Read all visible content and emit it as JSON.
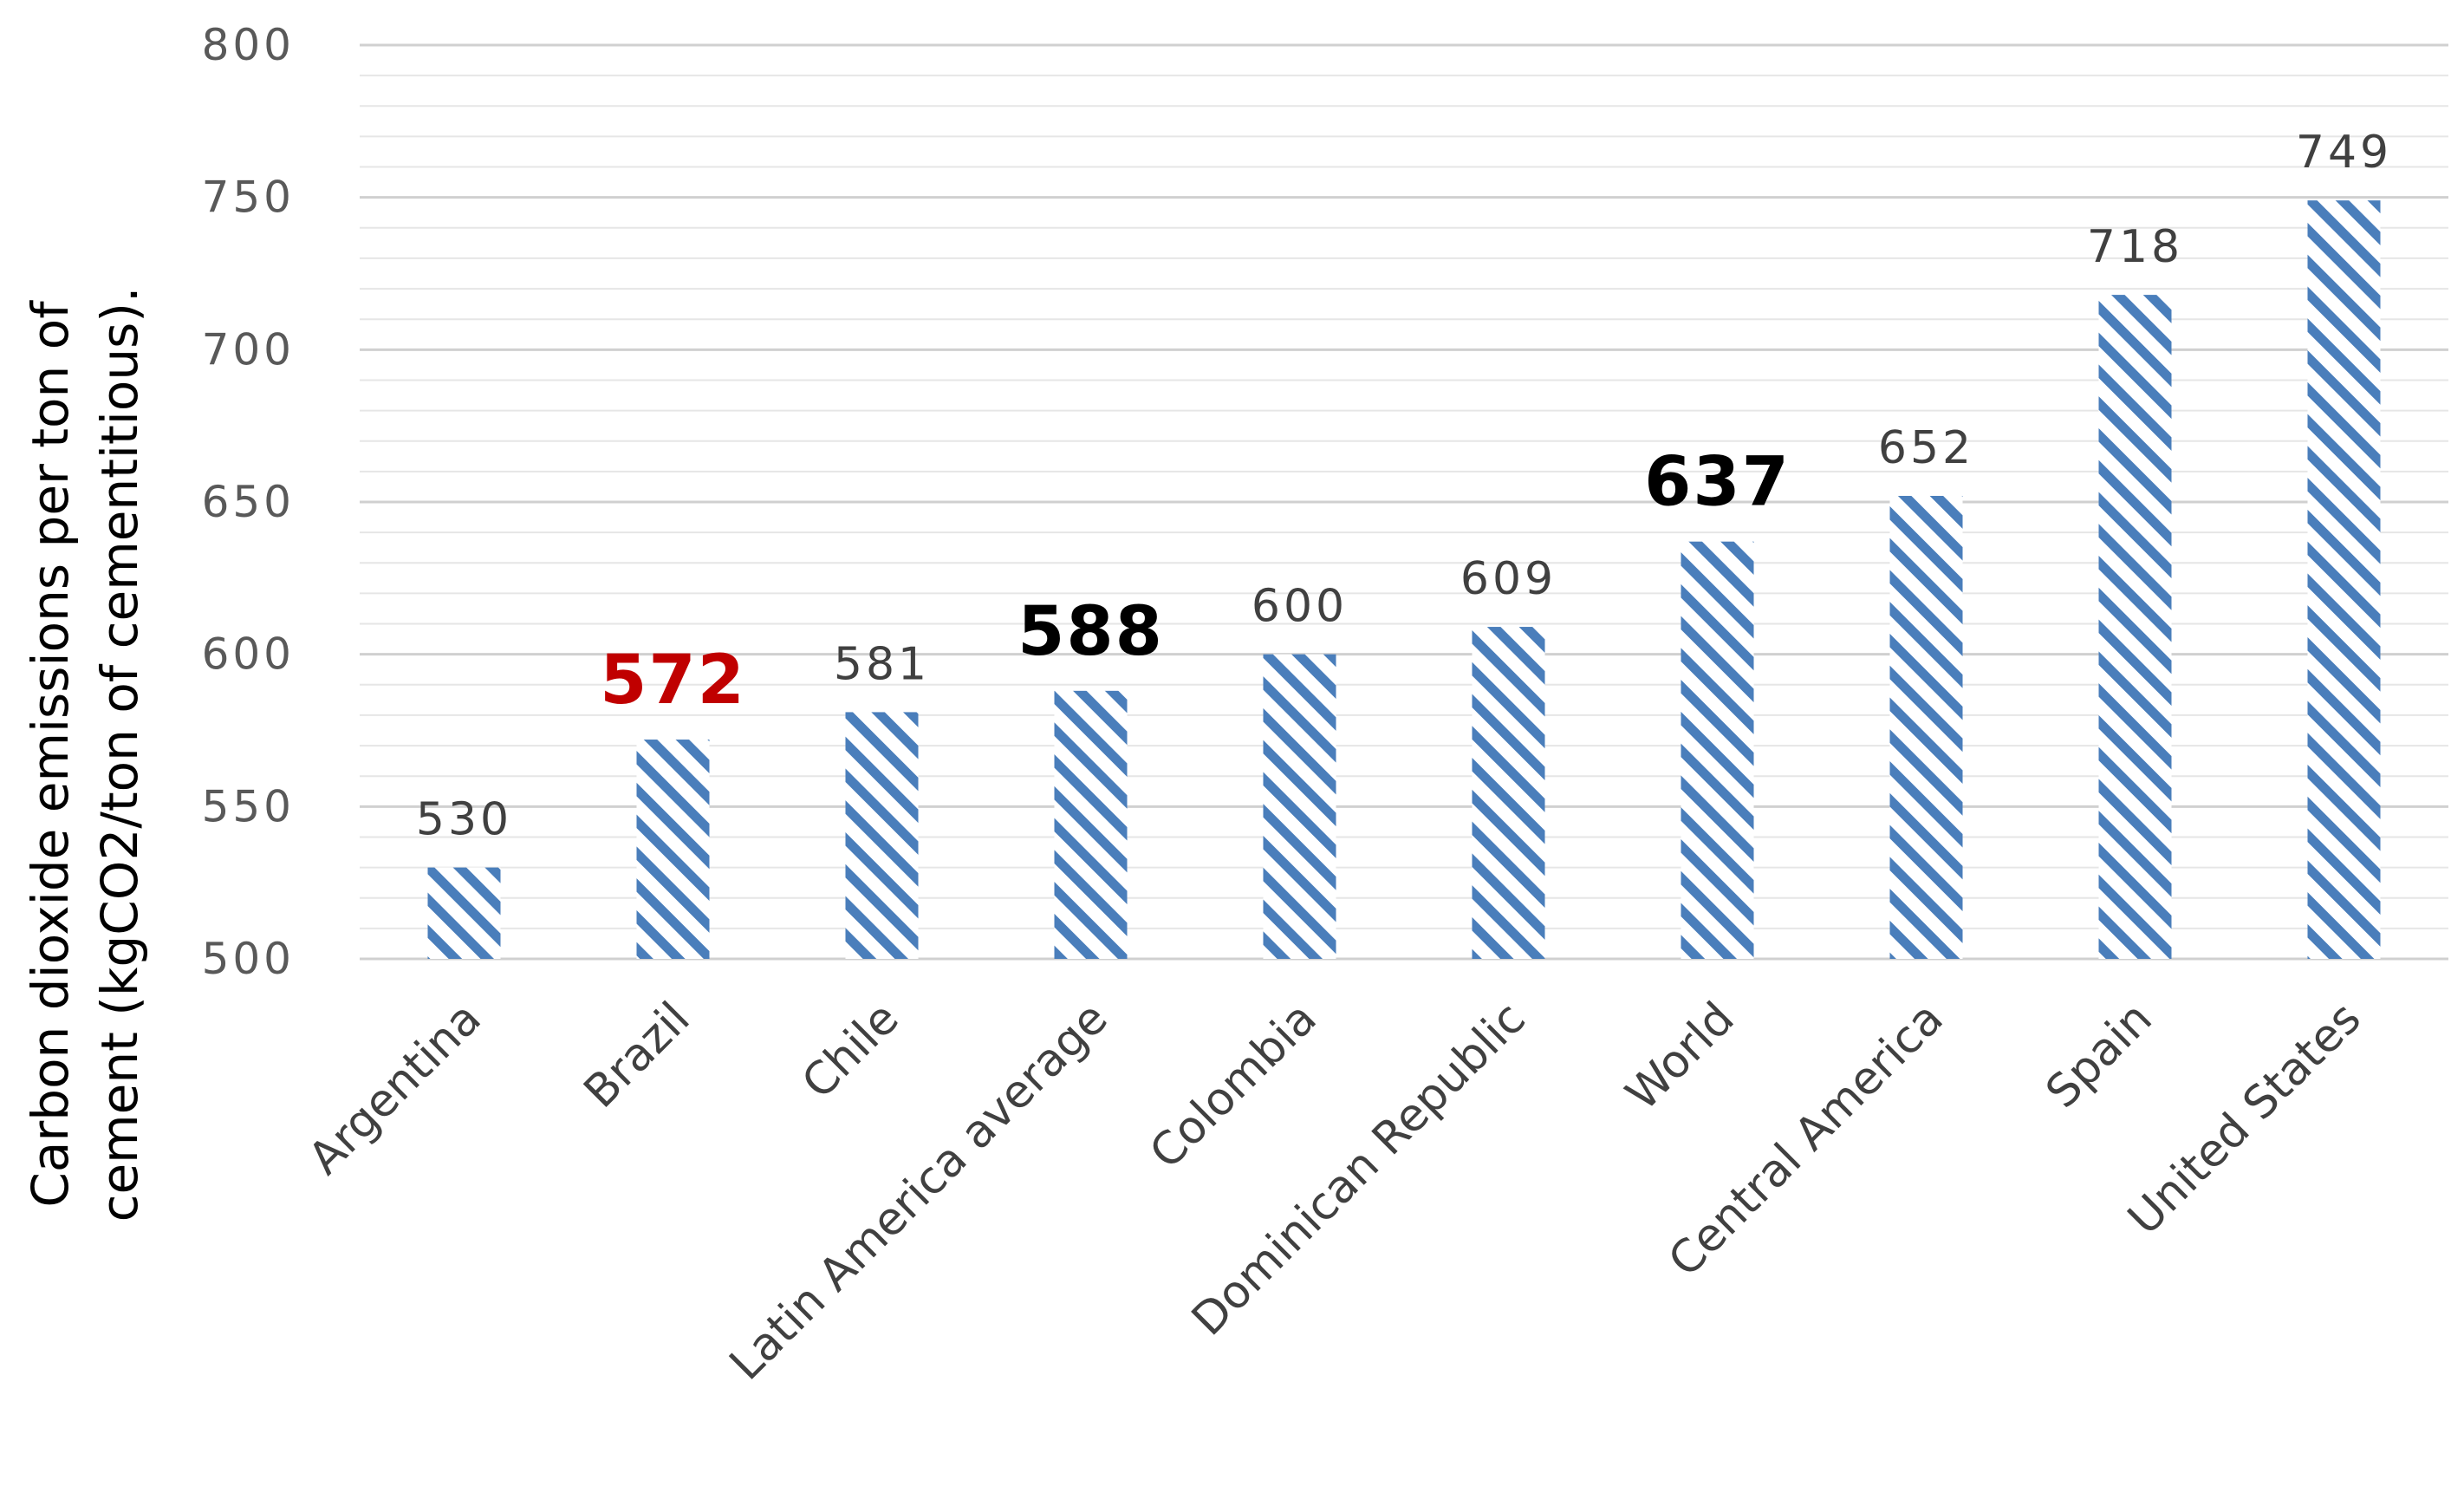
{
  "chart_data": {
    "type": "bar",
    "title": "",
    "xlabel": "",
    "ylabel_lines": [
      "Carbon dioxide emissions per ton of",
      "cement (kgCO2/ton of cementitious)."
    ],
    "categories": [
      "Argentina",
      "Brazil",
      "Chile",
      "Latin America average",
      "Colombia",
      "Dominican Republic",
      "World",
      "Central America",
      "Spain",
      "United States"
    ],
    "values": [
      530,
      572,
      581,
      588,
      600,
      609,
      637,
      652,
      718,
      749
    ],
    "value_labels": [
      "530",
      "572",
      "581",
      "588",
      "600",
      "609",
      "637",
      "652",
      "718",
      "749"
    ],
    "label_styles": [
      "normal",
      "highlight",
      "normal",
      "bold",
      "normal",
      "normal",
      "bold",
      "normal",
      "normal",
      "normal"
    ],
    "ylim": [
      500,
      800
    ],
    "yticks": [
      "500",
      "550",
      "600",
      "650",
      "700",
      "750",
      "800"
    ],
    "grid": true,
    "legend": "none",
    "colors": {
      "bar_stripe": "#4A7EBB",
      "grid": "#D9D9D9",
      "highlight_label": "#C00000",
      "bold_label": "#000000",
      "normal_label": "#404040"
    }
  }
}
